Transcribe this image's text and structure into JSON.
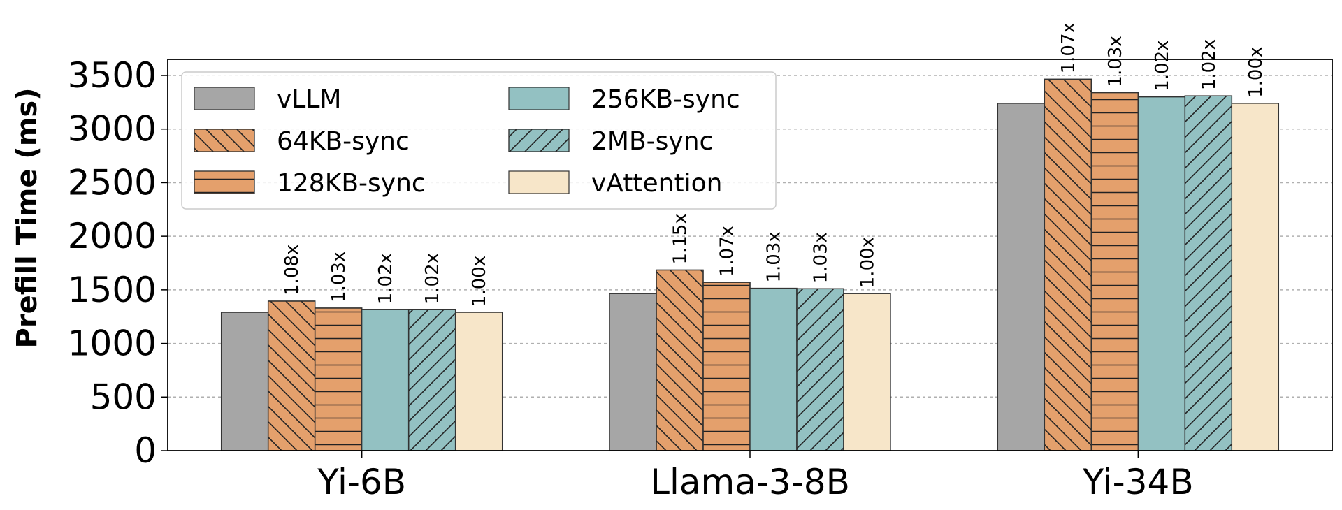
{
  "chart_data": {
    "type": "bar",
    "title": "",
    "xlabel": "",
    "ylabel": "Prefill Time (ms)",
    "ylim": [
      0,
      3650
    ],
    "yticks": [
      "0",
      "500",
      "1000",
      "1500",
      "2000",
      "2500",
      "3000",
      "3500"
    ],
    "grid": true,
    "legend_position": "top-left",
    "categories": [
      "Yi-6B",
      "Llama-3-8B",
      "Yi-34B"
    ],
    "series": [
      {
        "name": "vLLM",
        "values": [
          1290,
          1465,
          3240
        ],
        "labels": [
          "",
          "",
          ""
        ],
        "color": "#a6a6a6",
        "hatch": "none"
      },
      {
        "name": "64KB-sync",
        "values": [
          1395,
          1685,
          3465
        ],
        "labels": [
          "1.08x",
          "1.15x",
          "1.07x"
        ],
        "color": "#e4a06c",
        "hatch": "backslash"
      },
      {
        "name": "128KB-sync",
        "values": [
          1330,
          1570,
          3340
        ],
        "labels": [
          "1.03x",
          "1.07x",
          "1.03x"
        ],
        "color": "#e4a06c",
        "hatch": "horizontal"
      },
      {
        "name": "256KB-sync",
        "values": [
          1315,
          1515,
          3300
        ],
        "labels": [
          "1.02x",
          "1.03x",
          "1.02x"
        ],
        "color": "#93c1c2",
        "hatch": "none"
      },
      {
        "name": "2MB-sync",
        "values": [
          1315,
          1510,
          3310
        ],
        "labels": [
          "1.02x",
          "1.03x",
          "1.02x"
        ],
        "color": "#93c1c2",
        "hatch": "slash"
      },
      {
        "name": "vAttention",
        "values": [
          1290,
          1465,
          3240
        ],
        "labels": [
          "1.00x",
          "1.00x",
          "1.00x"
        ],
        "color": "#f7e6c9",
        "hatch": "none"
      }
    ]
  }
}
